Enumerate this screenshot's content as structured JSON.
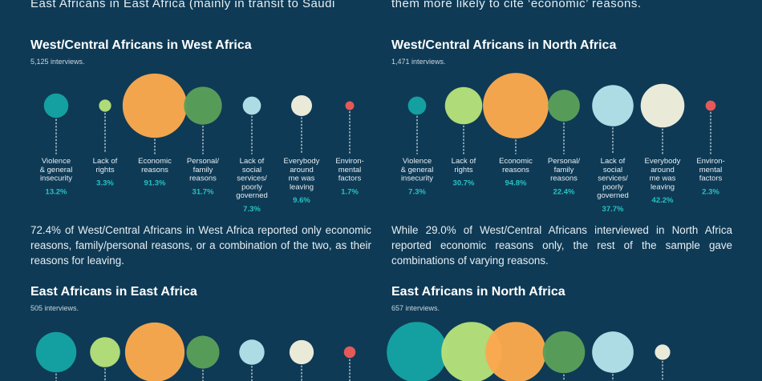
{
  "intro": {
    "left": "East Africans in East Africa (mainly in transit to Saudi",
    "right": "them more likely to cite ‘economic’ reasons."
  },
  "colors": {
    "violence": "#15a3a3",
    "rights": "#b5e07a",
    "economic": "#fba84e",
    "personal": "#5a9e5a",
    "services": "#b3e1ea",
    "leaving": "#f2efde",
    "environmental": "#ec5a5a"
  },
  "panels": [
    {
      "title": "West/Central Africans in West Africa",
      "count": "5,125 interviews.",
      "note": "72.4% of West/Central Africans in West Africa reported only economic reasons, family/personal reasons, or a combination of the two, as their reasons for leaving."
    },
    {
      "title": "West/Central Africans in North Africa",
      "count": "1,471 interviews.",
      "note": "While 29.0% of West/Central Africans interviewed in North Africa reported economic reasons only, the rest of the sample gave combinations of varying reasons."
    },
    {
      "title": "East Africans in East Africa",
      "count": "505 interviews.",
      "note": ""
    },
    {
      "title": "East Africans in North Africa",
      "count": "657 interviews.",
      "note": ""
    }
  ],
  "chart_data": [
    {
      "type": "bubble",
      "title": "West/Central Africans in West Africa",
      "categories": [
        [
          "Violence",
          "& general",
          "insecurity"
        ],
        [
          "Lack of",
          "rights"
        ],
        [
          "Economic",
          "reasons"
        ],
        [
          "Personal/",
          "family",
          "reasons"
        ],
        [
          "Lack of",
          "social",
          "services/",
          "poorly",
          "governed"
        ],
        [
          "Everybody",
          "around",
          "me was",
          "leaving"
        ],
        [
          "Environ-",
          "mental",
          "factors"
        ]
      ],
      "values": [
        13.2,
        3.3,
        91.3,
        31.7,
        7.3,
        9.6,
        1.7
      ],
      "labels": [
        "13.2%",
        "3.3%",
        "91.3%",
        "31.7%",
        "7.3%",
        "9.6%",
        "1.7%"
      ]
    },
    {
      "type": "bubble",
      "title": "West/Central Africans in North Africa",
      "categories": [
        [
          "Violence",
          "& general",
          "insecurity"
        ],
        [
          "Lack of",
          "rights"
        ],
        [
          "Economic",
          "reasons"
        ],
        [
          "Personal/",
          "family",
          "reasons"
        ],
        [
          "Lack of",
          "social",
          "services/",
          "poorly",
          "governed"
        ],
        [
          "Everybody",
          "around",
          "me was",
          "leaving"
        ],
        [
          "Environ-",
          "mental",
          "factors"
        ]
      ],
      "values": [
        7.3,
        30.7,
        94.8,
        22.4,
        37.7,
        42.2,
        2.3
      ],
      "labels": [
        "7.3%",
        "30.7%",
        "94.8%",
        "22.4%",
        "37.7%",
        "42.2%",
        "2.3%"
      ]
    },
    {
      "type": "bubble",
      "title": "East Africans in East Africa",
      "categories": [],
      "values": [
        36,
        20,
        78,
        24,
        14,
        13,
        3
      ],
      "labels": []
    },
    {
      "type": "bubble",
      "title": "East Africans in North Africa",
      "categories": [],
      "values": [
        62,
        62,
        62,
        30,
        29,
        4
      ],
      "labels": []
    }
  ]
}
